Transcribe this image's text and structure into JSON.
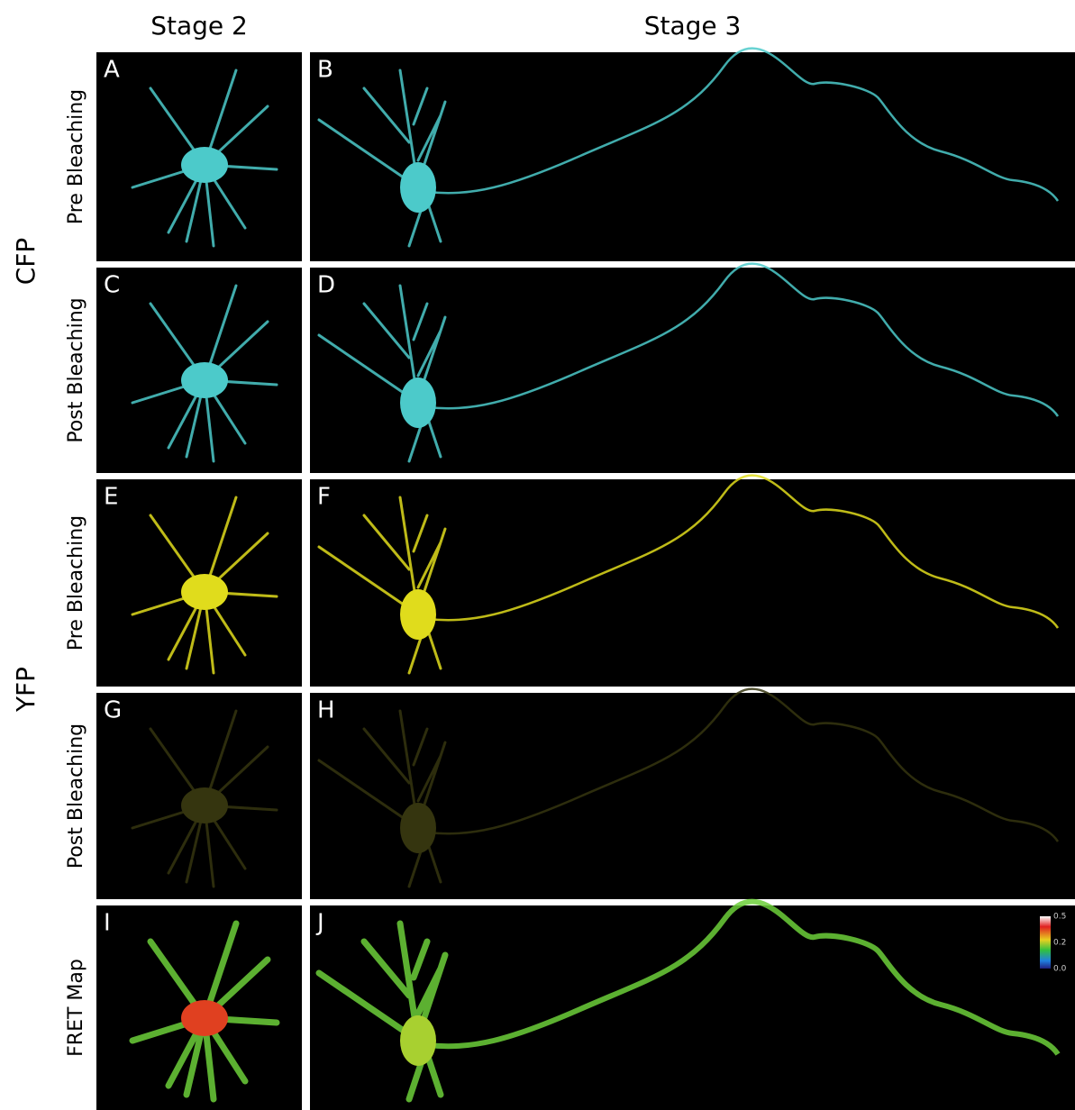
{
  "columns": [
    "Stage 2",
    "Stage 3"
  ],
  "groups": [
    "CFP",
    "YFP"
  ],
  "rows": [
    {
      "label": "Pre Bleaching",
      "panels": [
        "A",
        "B"
      ]
    },
    {
      "label": "Post Bleaching",
      "panels": [
        "C",
        "D"
      ]
    },
    {
      "label": "Pre Bleaching",
      "panels": [
        "E",
        "F"
      ]
    },
    {
      "label": "Post Bleaching",
      "panels": [
        "G",
        "H"
      ]
    },
    {
      "label": "FRET Map",
      "panels": [
        "I",
        "J"
      ]
    }
  ],
  "colorbar": {
    "ticks": [
      "0.5",
      "0.2",
      "0.0"
    ]
  }
}
